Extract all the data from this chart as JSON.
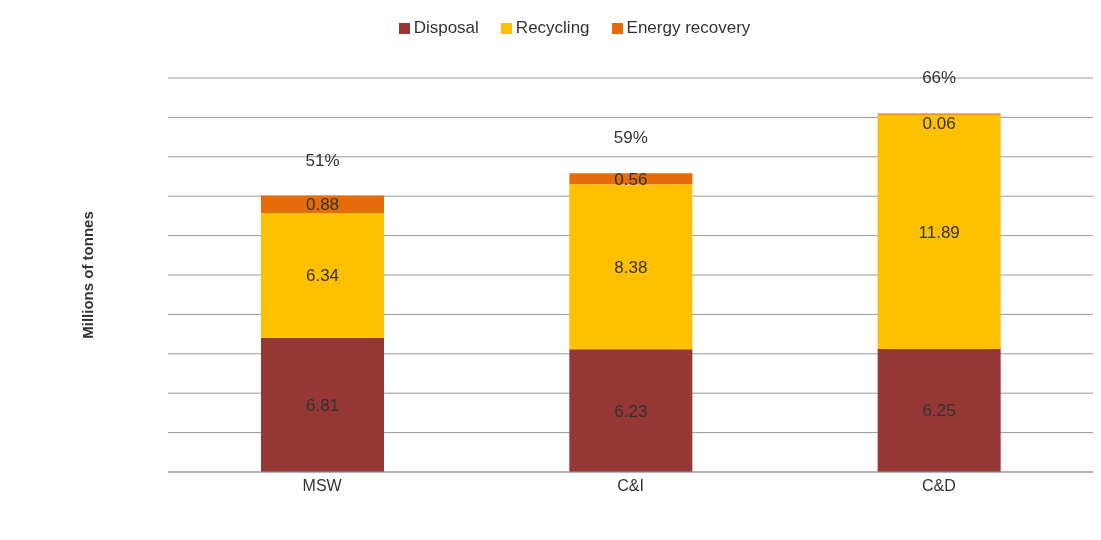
{
  "chart_data": {
    "type": "bar",
    "stacked": true,
    "ylabel": "Millions of tonnes",
    "categories": [
      "MSW",
      "C&I",
      "C&D"
    ],
    "series": [
      {
        "name": "Disposal",
        "color": "#953735",
        "values": [
          6.81,
          6.23,
          6.25
        ]
      },
      {
        "name": "Recycling",
        "color": "#ffc000",
        "values": [
          6.34,
          8.38,
          11.89
        ]
      },
      {
        "name": "Energy recovery",
        "color": "#e46c0a",
        "values": [
          0.88,
          0.56,
          0.06
        ]
      }
    ],
    "tick_labels": "x",
    "grid": "y",
    "legend": "top",
    "data_labels": true,
    "annotations": [
      "51%",
      "59%",
      "66%"
    ]
  }
}
